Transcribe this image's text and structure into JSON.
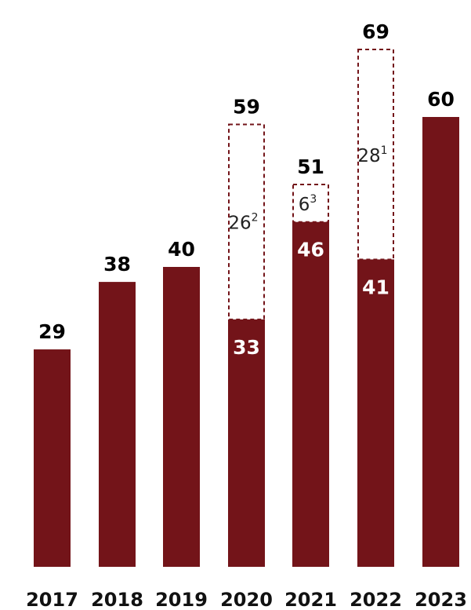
{
  "chart_data": {
    "type": "bar",
    "categories": [
      "2017",
      "2018",
      "2019",
      "2020",
      "2021",
      "2022",
      "2023"
    ],
    "series": [
      {
        "values": [
          29,
          38,
          40,
          33,
          46,
          41,
          60
        ]
      },
      {
        "values": [
          null,
          null,
          null,
          26,
          6,
          28,
          null
        ],
        "footnotes": [
          null,
          null,
          null,
          "2",
          "3",
          "1",
          null
        ]
      }
    ],
    "totals": [
      29,
      38,
      40,
      59,
      51,
      69,
      60
    ],
    "colors": {
      "bar": "#731419",
      "dashed_outline": "#731419",
      "total_label": "#000000",
      "inner_label": "#ffffff",
      "dashed_label": "#222222",
      "category_label": "#111111"
    },
    "ylim": [
      0,
      70
    ],
    "grid": false,
    "legend": "none"
  }
}
